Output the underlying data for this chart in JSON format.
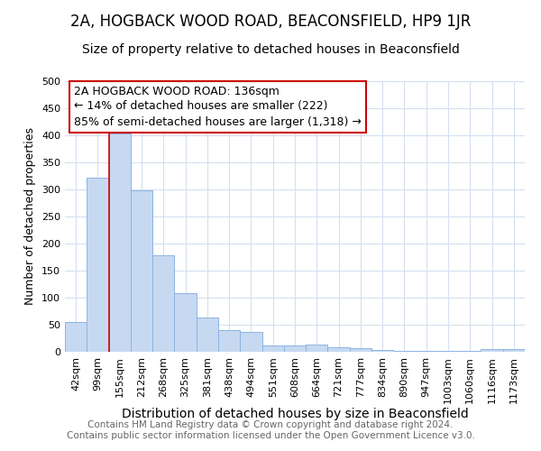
{
  "title1": "2A, HOGBACK WOOD ROAD, BEACONSFIELD, HP9 1JR",
  "title2": "Size of property relative to detached houses in Beaconsfield",
  "xlabel": "Distribution of detached houses by size in Beaconsfield",
  "ylabel": "Number of detached properties",
  "categories": [
    "42sqm",
    "99sqm",
    "155sqm",
    "212sqm",
    "268sqm",
    "325sqm",
    "381sqm",
    "438sqm",
    "494sqm",
    "551sqm",
    "608sqm",
    "664sqm",
    "721sqm",
    "777sqm",
    "834sqm",
    "890sqm",
    "947sqm",
    "1003sqm",
    "1060sqm",
    "1116sqm",
    "1173sqm"
  ],
  "values": [
    55,
    322,
    403,
    298,
    178,
    108,
    63,
    40,
    36,
    12,
    11,
    14,
    9,
    6,
    4,
    2,
    1,
    1,
    1,
    5,
    5
  ],
  "bar_color": "#c6d9f1",
  "bar_edge_color": "#8db4e2",
  "vline_color": "#cc0000",
  "annotation_text": "2A HOGBACK WOOD ROAD: 136sqm\n← 14% of detached houses are smaller (222)\n85% of semi-detached houses are larger (1,318) →",
  "annotation_box_color": "#cc0000",
  "ylim": [
    0,
    500
  ],
  "yticks": [
    0,
    50,
    100,
    150,
    200,
    250,
    300,
    350,
    400,
    450,
    500
  ],
  "footnote": "Contains HM Land Registry data © Crown copyright and database right 2024.\nContains public sector information licensed under the Open Government Licence v3.0.",
  "title1_fontsize": 12,
  "title2_fontsize": 10,
  "xlabel_fontsize": 10,
  "ylabel_fontsize": 9,
  "tick_fontsize": 8,
  "annotation_fontsize": 9,
  "footnote_fontsize": 7.5,
  "grid_color": "#d4dff0",
  "bg_color": "#ffffff"
}
